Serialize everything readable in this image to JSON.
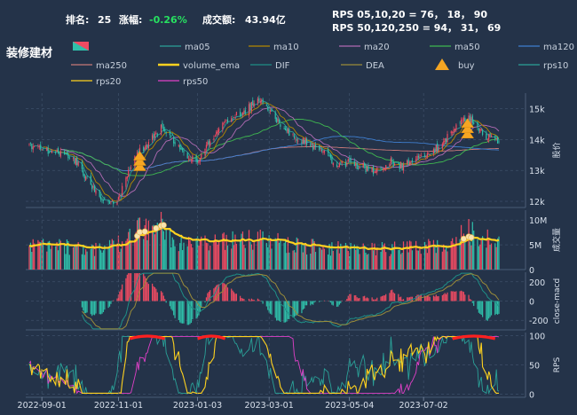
{
  "header": {
    "rank_label": "排名:",
    "rank_value": "25",
    "change_label": "涨幅:",
    "change_value": "-0.26%",
    "turnover_label": "成交额:",
    "turnover_value": "43.94亿",
    "rps_line1": "RPS 05,10,20 = 76， 18， 90",
    "rps_line2": "RPS 50,120,250 = 94， 31， 69",
    "title": "装修建材"
  },
  "colors": {
    "background": "#243349",
    "up": "#ef4b62",
    "down": "#2fbfa9",
    "ma05": "#2aa198",
    "ma10": "#b58900",
    "ma20": "#b06ab3",
    "ma50": "#3fb950",
    "ma120": "#3f7fd0",
    "ma250": "#c87878",
    "volume_ema": "#ffd21f",
    "dif": "#1f8f86",
    "dea": "#9a8c3a",
    "buy": "#f5a623",
    "rps10": "#2aa198",
    "rps20": "#ffd21f",
    "rps50": "#e040c8"
  },
  "legend": [
    {
      "key": "kline",
      "label": "",
      "type": "candle"
    },
    {
      "key": "ma05",
      "label": "ma05",
      "type": "line"
    },
    {
      "key": "ma10",
      "label": "ma10",
      "type": "line"
    },
    {
      "key": "ma20",
      "label": "ma20",
      "type": "line"
    },
    {
      "key": "ma50",
      "label": "ma50",
      "type": "line"
    },
    {
      "key": "ma120",
      "label": "ma120",
      "type": "line"
    },
    {
      "key": "ma250",
      "label": "ma250",
      "type": "line"
    },
    {
      "key": "volume_ema",
      "label": "volume_ema",
      "type": "thick"
    },
    {
      "key": "dif",
      "label": "DIF",
      "type": "line"
    },
    {
      "key": "dea",
      "label": "DEA",
      "type": "line"
    },
    {
      "key": "buy",
      "label": "buy",
      "type": "triangle"
    },
    {
      "key": "rps10",
      "label": "rps10",
      "type": "line"
    },
    {
      "key": "rps20",
      "label": "rps20",
      "type": "line"
    },
    {
      "key": "rps50",
      "label": "rps50",
      "type": "line"
    }
  ],
  "chart_data": {
    "type": "line",
    "x_range": [
      "2022-08-22",
      "2023-08-31"
    ],
    "x_tick_labels": [
      "2022-09-01",
      "2022-11-01",
      "2023-01-03",
      "2023-03-01",
      "2023-05-04",
      "2023-07-02"
    ],
    "close_anchors": [
      [
        "2022-08-22",
        13800
      ],
      [
        "2022-09-01",
        13700
      ],
      [
        "2022-09-15",
        13600
      ],
      [
        "2022-09-28",
        13300
      ],
      [
        "2022-10-10",
        12500
      ],
      [
        "2022-10-20",
        12100
      ],
      [
        "2022-10-31",
        11950
      ],
      [
        "2022-11-07",
        12700
      ],
      [
        "2022-11-15",
        13500
      ],
      [
        "2022-11-25",
        13900
      ],
      [
        "2022-12-05",
        14350
      ],
      [
        "2022-12-15",
        14000
      ],
      [
        "2022-12-25",
        13500
      ],
      [
        "2023-01-03",
        13300
      ],
      [
        "2023-01-12",
        13900
      ],
      [
        "2023-01-25",
        14600
      ],
      [
        "2023-02-05",
        14800
      ],
      [
        "2023-02-15",
        15100
      ],
      [
        "2023-02-22",
        15350
      ],
      [
        "2023-03-01",
        14950
      ],
      [
        "2023-03-10",
        14500
      ],
      [
        "2023-03-20",
        14100
      ],
      [
        "2023-04-01",
        13900
      ],
      [
        "2023-04-12",
        13600
      ],
      [
        "2023-04-25",
        13200
      ],
      [
        "2023-05-04",
        13250
      ],
      [
        "2023-05-15",
        13100
      ],
      [
        "2023-05-25",
        12950
      ],
      [
        "2023-06-05",
        13300
      ],
      [
        "2023-06-15",
        13100
      ],
      [
        "2023-06-26",
        13450
      ],
      [
        "2023-07-05",
        13450
      ],
      [
        "2023-07-15",
        13800
      ],
      [
        "2023-07-25",
        14250
      ],
      [
        "2023-08-02",
        14750
      ],
      [
        "2023-08-10",
        14600
      ],
      [
        "2023-08-20",
        14100
      ],
      [
        "2023-08-31",
        13900
      ]
    ],
    "volume_anchors": [
      [
        "2022-08-22",
        5.5
      ],
      [
        "2022-09-20",
        5.0
      ],
      [
        "2022-10-15",
        4.5
      ],
      [
        "2022-11-05",
        6.0
      ],
      [
        "2022-11-18",
        8.5
      ],
      [
        "2022-12-05",
        7.5
      ],
      [
        "2022-12-25",
        5.2
      ],
      [
        "2023-01-20",
        6.0
      ],
      [
        "2023-02-20",
        6.5
      ],
      [
        "2023-03-20",
        5.2
      ],
      [
        "2023-04-20",
        4.6
      ],
      [
        "2023-05-20",
        4.3
      ],
      [
        "2023-06-20",
        4.5
      ],
      [
        "2023-07-20",
        5.2
      ],
      [
        "2023-08-05",
        8.0
      ],
      [
        "2023-08-31",
        5.5
      ]
    ],
    "volume_spikes": [
      [
        "2022-11-18",
        11.5
      ],
      [
        "2022-12-05",
        12.0
      ],
      [
        "2023-08-06",
        11.0
      ]
    ],
    "buy_signals": [
      "2022-11-18",
      "2023-08-06"
    ],
    "rps_saturated_ranges": [
      [
        "2022-11-10",
        "2022-12-08"
      ],
      [
        "2023-01-03",
        "2023-01-25"
      ],
      [
        "2023-07-25",
        "2023-08-28"
      ]
    ],
    "panels": {
      "price": {
        "ylim": [
          11800,
          15500
        ],
        "yticks": [
          12000,
          13000,
          14000,
          15000
        ],
        "tick_labels": [
          "12k",
          "13k",
          "14k",
          "15k"
        ],
        "ylabel": "股价"
      },
      "volume": {
        "ylim": [
          0,
          12
        ],
        "yticks": [
          0,
          5,
          10
        ],
        "tick_labels": [
          "0",
          "5M",
          "10M"
        ],
        "ylabel": "成交量"
      },
      "macd": {
        "ylim": [
          -300,
          300
        ],
        "yticks": [
          -200,
          0,
          200
        ],
        "tick_labels": [
          "-200",
          "0",
          "200"
        ],
        "ylabel": "close-macd"
      },
      "rps": {
        "ylim": [
          -5,
          105
        ],
        "yticks": [
          0,
          50,
          100
        ],
        "tick_labels": [
          "0",
          "50",
          "100"
        ],
        "ylabel": "RPS"
      }
    },
    "grid": true
  }
}
